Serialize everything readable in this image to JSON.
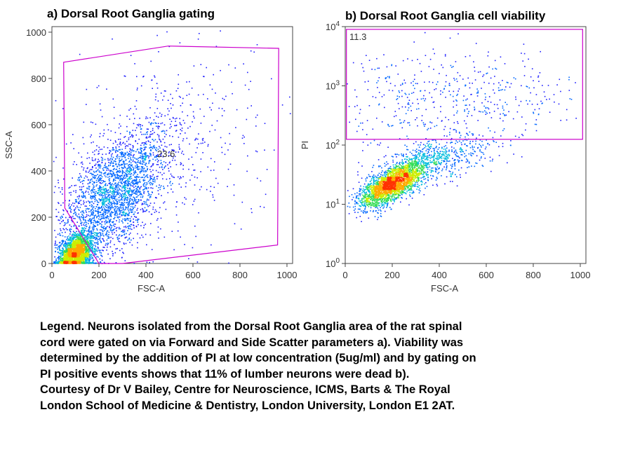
{
  "chart_data": [
    {
      "type": "scatter",
      "title": "a) Dorsal Root Ganglia gating",
      "xlabel": "FSC-A",
      "ylabel": "SSC-A",
      "xlim": [
        0,
        1024
      ],
      "ylim": [
        0,
        1024
      ],
      "x_ticks": [
        "0",
        "200",
        "400",
        "600",
        "800",
        "1000"
      ],
      "y_ticks": [
        "0",
        "200",
        "400",
        "600",
        "800",
        "1000"
      ],
      "gate": {
        "label": "23.6",
        "color": "#cc00cc",
        "polygon": [
          [
            50,
            870
          ],
          [
            495,
            940
          ],
          [
            965,
            930
          ],
          [
            960,
            80
          ],
          [
            300,
            0
          ],
          [
            200,
            0
          ],
          [
            55,
            240
          ]
        ]
      },
      "series": [
        {
          "clusters": [
            {
              "cx": 260,
              "cy": 300,
              "sx": 120,
              "sy": 150,
              "rho": 0.6,
              "n": 2600
            },
            {
              "cx": 100,
              "cy": 45,
              "sx": 35,
              "sy": 40,
              "rho": 0.3,
              "n": 2200
            },
            {
              "cx": 500,
              "cy": 500,
              "sx": 220,
              "sy": 230,
              "rho": 0.2,
              "n": 450
            }
          ]
        }
      ],
      "density_colors": [
        "#1e1eff",
        "#0066ff",
        "#00bbdd",
        "#33dd55",
        "#ccee00",
        "#ffaa00",
        "#ff3300"
      ],
      "grid": false
    },
    {
      "type": "scatter",
      "title": "b) Dorsal Root Ganglia cell viability",
      "xlabel": "FSC-A",
      "ylabel": "PI",
      "xlim": [
        0,
        1024
      ],
      "ylim": [
        1,
        10000
      ],
      "yscale": "log",
      "x_ticks": [
        "0",
        "200",
        "400",
        "600",
        "800",
        "1000"
      ],
      "y_ticks": [
        {
          "base": "10",
          "exp": "0"
        },
        {
          "base": "10",
          "exp": "1"
        },
        {
          "base": "10",
          "exp": "2"
        },
        {
          "base": "10",
          "exp": "3"
        },
        {
          "base": "10",
          "exp": "4"
        }
      ],
      "gate": {
        "label": "11.3",
        "color": "#cc00cc",
        "rect": {
          "x0": 5,
          "x1": 1010,
          "y0": 125,
          "y1": 9000
        }
      },
      "series": [
        {
          "clusters": [
            {
              "cx": 200,
              "logcy": 1.35,
              "sx": 70,
              "slog": 0.2,
              "rho": 0.7,
              "n": 2500
            },
            {
              "cx": 380,
              "logcy": 1.75,
              "sx": 120,
              "slog": 0.2,
              "rho": 0.5,
              "n": 600
            },
            {
              "cx": 450,
              "logcy": 2.8,
              "sx": 260,
              "slog": 0.4,
              "rho": 0.0,
              "n": 500
            }
          ]
        }
      ],
      "density_colors": [
        "#1e1eff",
        "#0066ff",
        "#00bbdd",
        "#33dd55",
        "#ccee00",
        "#ffaa00",
        "#ff3300"
      ],
      "grid": false
    }
  ],
  "legend_lines": [
    "Legend. Neurons isolated from the Dorsal Root Ganglia area of the rat spinal",
    "cord were gated on via Forward and Side Scatter parameters a). Viability was",
    "determined by the addition of PI at low concentration (5ug/ml) and by gating on",
    "PI positive events shows that 11% of lumber neurons were dead b).",
    "Courtesy of Dr V Bailey, Centre for Neuroscience, ICMS, Barts & The Royal",
    "London School of Medicine & Dentistry, London University, London E1 2AT."
  ]
}
